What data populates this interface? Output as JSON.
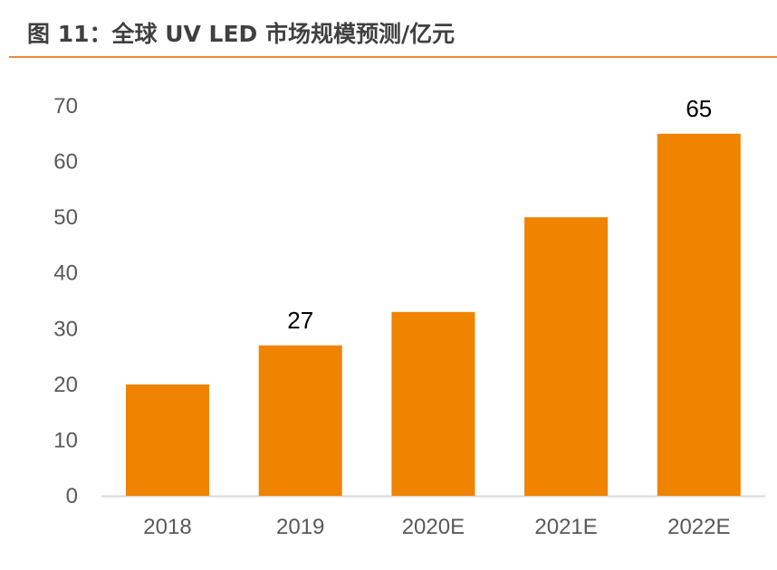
{
  "title": "图 11：全球 UV LED 市场规模预测/亿元",
  "colors": {
    "bar": "#f08300",
    "rule": "#e8883a",
    "axis": "#d9d9d9"
  },
  "chart_data": {
    "type": "bar",
    "title": "图 11：全球 UV LED 市场规模预测/亿元",
    "categories": [
      "2018",
      "2019",
      "2020E",
      "2021E",
      "2022E"
    ],
    "values": [
      20,
      27,
      33,
      50,
      65
    ],
    "data_labels": [
      "",
      "27",
      "",
      "",
      "65"
    ],
    "ylim": [
      0,
      70
    ],
    "yticks": [
      "0",
      "10",
      "20",
      "30",
      "40",
      "50",
      "60",
      "70"
    ],
    "grid": false,
    "legend": "none"
  }
}
